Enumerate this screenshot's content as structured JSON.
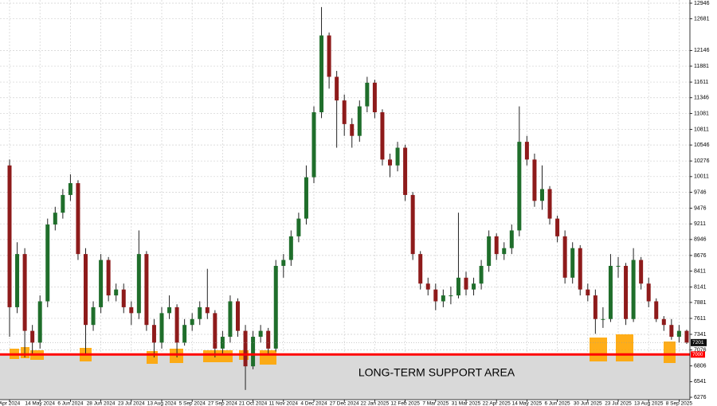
{
  "chart_data": {
    "type": "candlestick",
    "categories": [
      "Apr 2024",
      null,
      null,
      null,
      "14 May 2024",
      null,
      null,
      null,
      "6 Jun 2024",
      null,
      null,
      null,
      "28 Jun 2024",
      null,
      null,
      null,
      "23 Jul 2024",
      null,
      null,
      null,
      "13 Aug 2024",
      null,
      null,
      null,
      "5 Sep 2024",
      null,
      null,
      null,
      "27 Sep 2024",
      null,
      null,
      null,
      "21 Oct 2024",
      null,
      null,
      null,
      "11 Nov 2024",
      null,
      null,
      null,
      "4 Dec 2024",
      null,
      null,
      null,
      "27 Dec 2024",
      null,
      null,
      null,
      "22 Jan 2025",
      null,
      null,
      null,
      "12 Feb 2025",
      null,
      null,
      null,
      "7 Mar 2025",
      null,
      null,
      null,
      "31 Mar 2025",
      null,
      null,
      null,
      "22 Apr 2025",
      null,
      null,
      null,
      "14 May 2025",
      null,
      null,
      null,
      "6 Jun 2025",
      null,
      null,
      null,
      "30 Jun 2025",
      null,
      null,
      null,
      "23 Jul 2025",
      null,
      null,
      null,
      "13 Aug 2025",
      null,
      null,
      null,
      "8 Sep 2025",
      null
    ],
    "open": [
      10200,
      7800,
      8700,
      7400,
      7200,
      7900,
      9200,
      9400,
      9700,
      9900,
      8700,
      7500,
      7800,
      8600,
      8000,
      8100,
      7800,
      7700,
      8700,
      7500,
      7200,
      7700,
      7800,
      7200,
      7500,
      7600,
      7800,
      7700,
      7100,
      7300,
      7900,
      7400,
      6800,
      7300,
      7400,
      7100,
      8500,
      8600,
      9000,
      9300,
      10000,
      11100,
      12400,
      11700,
      11300,
      10900,
      10700,
      11200,
      11600,
      11100,
      10300,
      10200,
      10500,
      9700,
      8700,
      8200,
      8100,
      7900,
      8000,
      8000,
      8300,
      8100,
      8200,
      8500,
      9000,
      8700,
      8800,
      9100,
      10600,
      10300,
      9600,
      9800,
      9300,
      9000,
      8300,
      8800,
      8100,
      8000,
      7600,
      7600,
      8500,
      8500,
      7600,
      8600,
      8200,
      7900,
      7600,
      7500,
      7300,
      7400
    ],
    "high": [
      10300,
      8900,
      8800,
      7500,
      8000,
      9300,
      9500,
      9800,
      10050,
      9950,
      8800,
      7900,
      8700,
      8650,
      8200,
      8200,
      7900,
      9100,
      8750,
      7600,
      7800,
      8000,
      7850,
      7600,
      7700,
      7900,
      8450,
      7750,
      7400,
      8000,
      7950,
      7500,
      7400,
      7500,
      7450,
      8600,
      8700,
      9100,
      9400,
      10200,
      11200,
      12880,
      12450,
      11800,
      11400,
      11000,
      11300,
      11700,
      11650,
      11150,
      10400,
      10600,
      10550,
      9750,
      8750,
      8300,
      8200,
      8100,
      8150,
      9400,
      8400,
      8300,
      8600,
      9100,
      9050,
      8900,
      9200,
      11200,
      10700,
      10400,
      10200,
      9850,
      9350,
      9100,
      8900,
      8850,
      8200,
      8100,
      7800,
      8700,
      8650,
      8550,
      8800,
      8650,
      8300,
      7950,
      7650,
      7600,
      7500,
      7420
    ],
    "low": [
      7300,
      7700,
      6950,
      7000,
      7100,
      7800,
      9100,
      9300,
      9600,
      8600,
      7000,
      7400,
      7700,
      7900,
      7900,
      7700,
      7500,
      7600,
      7400,
      6950,
      7100,
      7600,
      6950,
      7150,
      7400,
      7500,
      7600,
      6950,
      7000,
      7200,
      7300,
      6400,
      6750,
      7200,
      7000,
      7050,
      8300,
      8500,
      8900,
      9200,
      9900,
      11000,
      11500,
      10500,
      10700,
      10500,
      10600,
      11100,
      11000,
      10200,
      10000,
      10100,
      9600,
      8600,
      8100,
      8000,
      7750,
      7800,
      7850,
      7950,
      8000,
      8000,
      8100,
      8400,
      8600,
      8600,
      8700,
      9000,
      10200,
      9500,
      9450,
      9200,
      8900,
      8200,
      8200,
      8000,
      7900,
      7350,
      7450,
      7550,
      8300,
      7500,
      7550,
      8100,
      7800,
      7550,
      7400,
      7250,
      7200,
      7180
    ],
    "close": [
      7800,
      8700,
      7400,
      7200,
      7900,
      9200,
      9400,
      9700,
      9900,
      8700,
      7500,
      7800,
      8600,
      8000,
      8100,
      7800,
      7700,
      8700,
      7500,
      7200,
      7700,
      7800,
      7200,
      7500,
      7600,
      7800,
      7700,
      7100,
      7300,
      7900,
      7400,
      6800,
      7300,
      7400,
      7100,
      8500,
      8600,
      9000,
      9300,
      10000,
      11100,
      12400,
      11700,
      11300,
      10900,
      10700,
      11200,
      11600,
      11100,
      10300,
      10200,
      10500,
      9700,
      8700,
      8200,
      8100,
      7900,
      8000,
      8000,
      8300,
      8100,
      8200,
      8500,
      9000,
      8700,
      8800,
      9100,
      10600,
      10300,
      9600,
      9800,
      9300,
      9000,
      8300,
      8800,
      8100,
      8000,
      7600,
      7600,
      8500,
      8500,
      7600,
      8600,
      8200,
      7900,
      7600,
      7500,
      7300,
      7400,
      7201
    ],
    "up_color": "#1f6e2b",
    "down_color": "#8e1b1b",
    "ylim": [
      6236,
      13000
    ],
    "yticks": [
      12946,
      12681,
      12146,
      11881,
      11611,
      11346,
      11081,
      10811,
      10546,
      10276,
      10011,
      9746,
      9476,
      9211,
      8946,
      8676,
      8411,
      8141,
      7881,
      7611,
      7341,
      7076,
      6806,
      6541,
      6276
    ],
    "grid": true,
    "support_level": 7000,
    "support_color": "#ff0000",
    "support_label": "LONG-TERM SUPPORT AREA",
    "last_price": 7201
  }
}
